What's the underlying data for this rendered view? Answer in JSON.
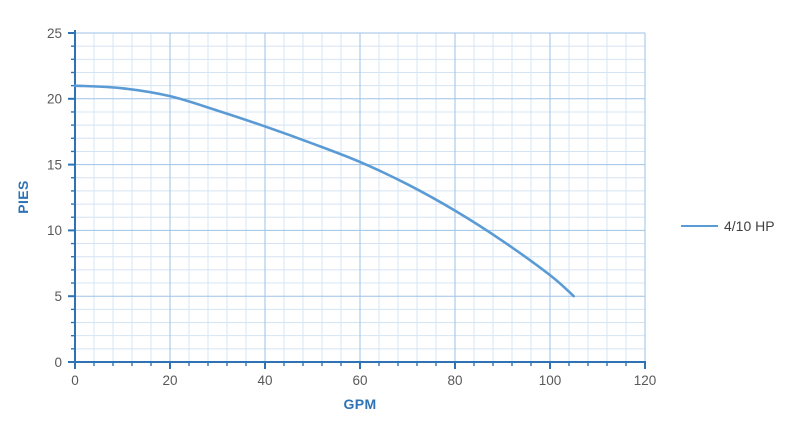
{
  "chart_data": {
    "type": "line",
    "title": "",
    "xlabel": "GPM",
    "ylabel": "PIES",
    "xlim": [
      0,
      120
    ],
    "ylim": [
      0,
      25
    ],
    "x_major_ticks": [
      0,
      20,
      40,
      60,
      80,
      100,
      120
    ],
    "x_minor_step": 4,
    "y_major_ticks": [
      0,
      5,
      10,
      15,
      20,
      25
    ],
    "y_minor_step": 1,
    "grid": "major and minor gridlines on, blue theme",
    "legend_position": "right-center",
    "series": [
      {
        "name": "4/10 HP",
        "x": [
          0,
          10,
          20,
          30,
          40,
          50,
          60,
          70,
          80,
          90,
          100,
          105
        ],
        "y": [
          21,
          20.8,
          20.2,
          19.1,
          17.9,
          16.6,
          15.2,
          13.5,
          11.5,
          9.2,
          6.6,
          5.0
        ]
      }
    ]
  },
  "colors": {
    "background": "#FFFFFF",
    "series_line": "#5B9BD5",
    "axis_line": "#2E74B5",
    "major_grid": "#9DC3E6",
    "minor_grid": "#D5E4F4",
    "tick_label": "#595959",
    "axis_title": "#2E74B5",
    "legend_text": "#404040"
  }
}
